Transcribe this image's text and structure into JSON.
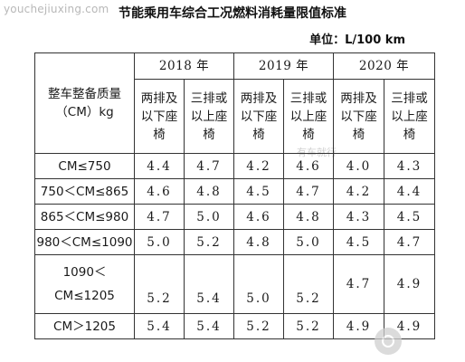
{
  "watermark": {
    "site": "youchejiuxing.com",
    "overlay": "有车就行",
    "logo_icon": "steering-wheel-logo-icon"
  },
  "title": "节能乘用车综合工况燃料消耗量限值标准",
  "unit": "单位：L/100 km",
  "table": {
    "mass_header": [
      "整车整备质量",
      "（CM）kg"
    ],
    "years": [
      "2018 年",
      "2019 年",
      "2020 年"
    ],
    "seat_types": [
      [
        "两排及",
        "以下座",
        "椅"
      ],
      [
        "三排或",
        "以上座",
        "椅"
      ]
    ],
    "rows": [
      {
        "range": [
          "CM≤750"
        ],
        "values": [
          "4.4",
          "4.7",
          "4.2",
          "4.6",
          "4.0",
          "4.3"
        ]
      },
      {
        "range": [
          "750＜CM≤865"
        ],
        "values": [
          "4.6",
          "4.8",
          "4.5",
          "4.7",
          "4.2",
          "4.4"
        ]
      },
      {
        "range": [
          "865＜CM≤980"
        ],
        "values": [
          "4.7",
          "5.0",
          "4.6",
          "4.8",
          "4.3",
          "4.5"
        ]
      },
      {
        "range": [
          "980＜CM≤1090"
        ],
        "values": [
          "5.0",
          "5.2",
          "4.8",
          "5.0",
          "4.5",
          "4.7"
        ]
      },
      {
        "range": [
          "1090＜",
          "CM≤1205"
        ],
        "values": [
          "5.2",
          "5.4",
          "5.0",
          "5.2",
          "4.7",
          "4.9"
        ]
      },
      {
        "range": [
          "CM＞1205"
        ],
        "values": [
          "5.4",
          "5.4",
          "5.2",
          "5.2",
          "4.9",
          "4.9"
        ]
      }
    ]
  }
}
